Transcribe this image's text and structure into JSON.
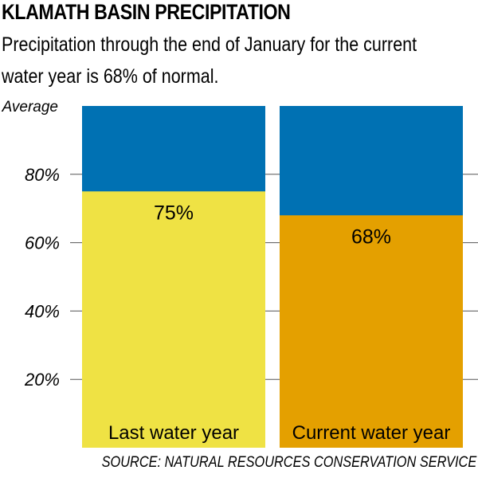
{
  "header": {
    "title": "KLAMATH BASIN PRECIPITATION",
    "subtitle": "Precipitation through the end of January for the current water year is 68% of normal."
  },
  "source": "SOURCE: NATURAL RESOURCES CONSERVATION SERVICE",
  "chart_data": {
    "type": "bar",
    "categories": [
      "Last water year",
      "Current water year"
    ],
    "values": [
      75,
      68
    ],
    "value_labels": [
      "75%",
      "68%"
    ],
    "average": 100,
    "ylim": [
      0,
      100
    ],
    "yticks": [
      20,
      40,
      60,
      80
    ],
    "ytick_labels": [
      "20%",
      "40%",
      "60%",
      "80%"
    ],
    "average_label": "Average",
    "colors": {
      "average_fill": "#0071b3",
      "last_year_fill": "#efe244",
      "current_year_fill": "#e4a000",
      "gridline": "#555555"
    }
  }
}
